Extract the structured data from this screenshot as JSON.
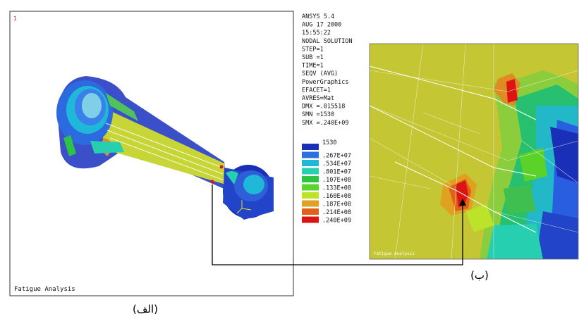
{
  "window_number": "1",
  "info_panel": {
    "lines": [
      "ANSYS 5.4",
      "AUG 17 2000",
      "15:55:22",
      "NODAL SOLUTION",
      "STEP=1",
      "SUB =1",
      "TIME=1",
      "SEQV      (AVG)",
      "PowerGraphics",
      "EFACET=1",
      "AVRES=Mat",
      "DMX =.015518",
      "SMN =1530",
      "SMX =.240E+09"
    ]
  },
  "legend": {
    "levels": [
      {
        "label": "1530",
        "color": "#1a2fb8"
      },
      {
        "label": ".267E+07",
        "color": "#2b6fe0"
      },
      {
        "label": ".534E+07",
        "color": "#1fb8d8"
      },
      {
        "label": ".801E+07",
        "color": "#26cfb0"
      },
      {
        "label": ".107E+08",
        "color": "#2bc444"
      },
      {
        "label": ".133E+08",
        "color": "#58d62a"
      },
      {
        "label": ".160E+08",
        "color": "#bde22a"
      },
      {
        "label": ".187E+08",
        "color": "#e0a020"
      },
      {
        "label": ".214E+08",
        "color": "#e06218"
      },
      {
        "label": ".240E+09",
        "color": "#dc1414"
      }
    ]
  },
  "left_panel": {
    "footer": "Fatigue Analysis",
    "caption": "(الف)"
  },
  "right_panel": {
    "footer": "Fatigue Analysis",
    "caption": "(ب)"
  }
}
